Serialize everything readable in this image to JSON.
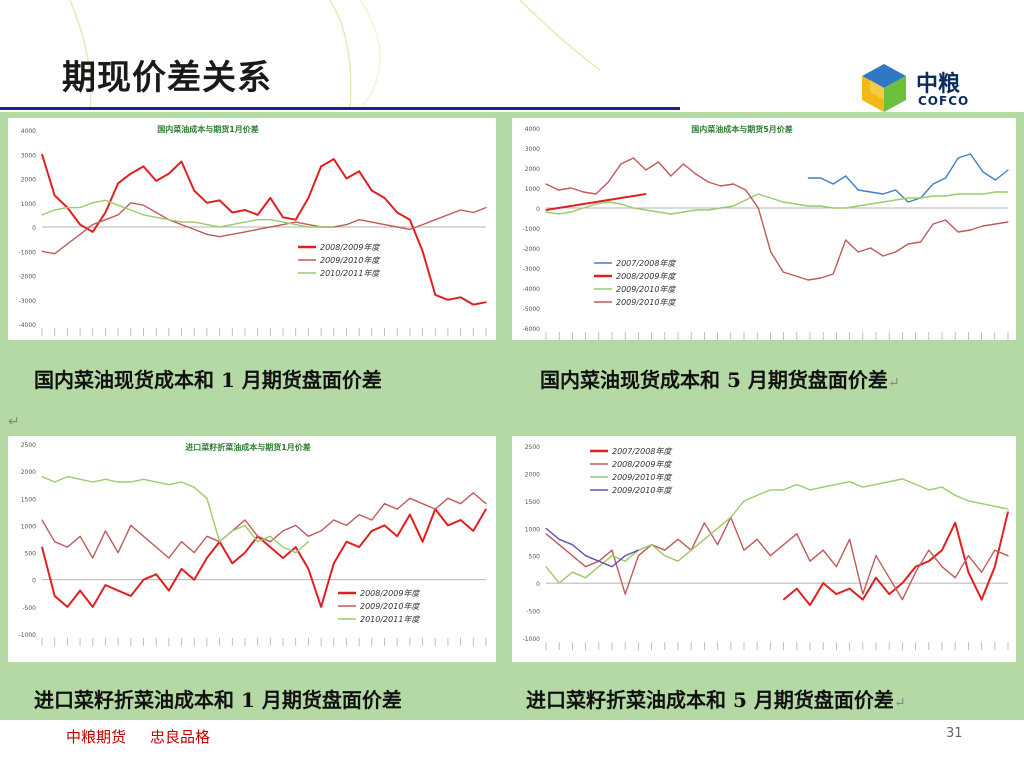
{
  "slide": {
    "title": "期现价差关系",
    "page_number": "31",
    "footer": {
      "company": "中粮期货",
      "motto": "忠良品格"
    },
    "logo": {
      "cn": "中粮",
      "en": "COFCO"
    },
    "return_mark": "↵"
  },
  "captions": [
    "国内菜油现货成本和 1 月期货盘面价差",
    "国内菜油现货成本和 5 月期货盘面价差",
    "进口菜籽折菜油成本和 1 月期货盘面价差",
    "进口菜籽折菜油成本和 5 月期货盘面价差"
  ],
  "colors": {
    "red": "#e02020",
    "rose": "#c05a5a",
    "green": "#9ccb6a",
    "blue": "#3f7fc8",
    "purple": "#6a4fb8"
  },
  "chart_data": [
    {
      "type": "line",
      "title": "国内菜油成本与期货1月价差",
      "ylim": [
        -4000,
        4000
      ],
      "yticks": [
        "4000",
        "3000",
        "2000",
        "1000",
        "0",
        "-1000",
        "-2000",
        "-3000",
        "-4000"
      ],
      "legend_position": "center-right",
      "series": [
        {
          "name": "2008/2009年度",
          "color": "red",
          "values": [
            3000,
            1300,
            800,
            100,
            -200,
            600,
            1800,
            2200,
            2500,
            1900,
            2200,
            2700,
            1500,
            1000,
            1100,
            600,
            700,
            500,
            1200,
            400,
            300,
            1200,
            2500,
            2800,
            2000,
            2300,
            1500,
            1200,
            600,
            300,
            -1000,
            -2800,
            -3000,
            -2900,
            -3200,
            -3100
          ]
        },
        {
          "name": "2009/2010年度",
          "color": "rose",
          "values": [
            -1000,
            -1100,
            -700,
            -300,
            100,
            300,
            500,
            1000,
            900,
            600,
            300,
            100,
            -100,
            -300,
            -400,
            -300,
            -200,
            -100,
            0,
            100,
            200,
            100,
            0,
            0,
            100,
            300,
            200,
            100,
            0,
            -100,
            100,
            300,
            500,
            700,
            600,
            800
          ]
        },
        {
          "name": "2010/2011年度",
          "color": "green",
          "values": [
            500,
            700,
            800,
            800,
            1000,
            1100,
            900,
            700,
            500,
            400,
            300,
            200,
            200,
            100,
            0,
            100,
            200,
            300,
            300,
            200,
            100,
            0,
            0,
            0
          ]
        }
      ]
    },
    {
      "type": "line",
      "title": "国内菜油成本与期货5月价差",
      "ylim": [
        -6000,
        4000
      ],
      "yticks": [
        "4000",
        "3000",
        "2000",
        "1000",
        "0",
        "-1000",
        "-2000",
        "-3000",
        "-4000",
        "-5000",
        "-6000"
      ],
      "legend_position": "center",
      "series": [
        {
          "name": "2007/2008年度",
          "color": "blue",
          "values": [
            null,
            null,
            null,
            null,
            null,
            null,
            null,
            null,
            null,
            null,
            null,
            null,
            null,
            null,
            null,
            null,
            null,
            null,
            null,
            null,
            null,
            1500,
            1500,
            1200,
            1600,
            900,
            800,
            700,
            900,
            300,
            500,
            1200,
            1500,
            2500,
            2700,
            1800,
            1400,
            1900
          ]
        },
        {
          "name": "2008/2009年度",
          "color": "red",
          "values": [
            -100,
            0,
            100,
            200,
            300,
            400,
            500,
            600,
            700
          ]
        },
        {
          "name": "2009/2010年度",
          "color": "green",
          "values": [
            -200,
            -300,
            -200,
            0,
            200,
            300,
            200,
            0,
            -100,
            -200,
            -300,
            -200,
            -100,
            -100,
            0,
            100,
            400,
            700,
            500,
            300,
            200,
            100,
            100,
            0,
            0,
            100,
            200,
            300,
            400,
            500,
            500,
            600,
            600,
            700,
            700,
            700,
            800,
            800
          ]
        },
        {
          "name": "2009/2010年度",
          "color": "rose",
          "values": [
            1200,
            900,
            1000,
            800,
            700,
            1300,
            2200,
            2500,
            1900,
            2300,
            1600,
            2200,
            1700,
            1300,
            1100,
            1200,
            900,
            0,
            -2200,
            -3200,
            -3400,
            -3600,
            -3500,
            -3300,
            -1600,
            -2200,
            -2000,
            -2400,
            -2200,
            -1800,
            -1700,
            -800,
            -600,
            -1200,
            -1100,
            -900,
            -800,
            -700
          ]
        }
      ]
    },
    {
      "type": "line",
      "title": "进口菜籽折菜油成本与期货1月价差",
      "ylim": [
        -1000,
        2500
      ],
      "yticks": [
        "2500",
        "2000",
        "1500",
        "1000",
        "500",
        "0",
        "-500",
        "-1000"
      ],
      "legend_position": "bottom-right",
      "series": [
        {
          "name": "2008/2009年度",
          "color": "red",
          "values": [
            600,
            -300,
            -500,
            -200,
            -500,
            -100,
            -200,
            -300,
            0,
            100,
            -200,
            200,
            0,
            400,
            700,
            300,
            500,
            800,
            600,
            400,
            600,
            200,
            -500,
            300,
            700,
            600,
            900,
            1000,
            800,
            1200,
            700,
            1300,
            1000,
            1100,
            900,
            1300
          ]
        },
        {
          "name": "2009/2010年度",
          "color": "rose",
          "values": [
            1100,
            700,
            600,
            800,
            400,
            900,
            500,
            1000,
            800,
            600,
            400,
            700,
            500,
            800,
            700,
            900,
            1100,
            800,
            700,
            900,
            1000,
            800,
            900,
            1100,
            1000,
            1200,
            1100,
            1400,
            1300,
            1500,
            1400,
            1300,
            1500,
            1400,
            1600,
            1400
          ]
        },
        {
          "name": "2010/2011年度",
          "color": "green",
          "values": [
            1900,
            1800,
            1900,
            1850,
            1800,
            1850,
            1800,
            1800,
            1850,
            1800,
            1750,
            1800,
            1700,
            1500,
            700,
            900,
            1000,
            700,
            800,
            600,
            500,
            700
          ]
        }
      ]
    },
    {
      "type": "line",
      "title": "",
      "ylim": [
        -1000,
        2500
      ],
      "yticks": [
        "2500",
        "2000",
        "1500",
        "1000",
        "500",
        "0",
        "-500",
        "-1000"
      ],
      "legend_position": "top-left",
      "series": [
        {
          "name": "2007/2008年度",
          "color": "red",
          "values": [
            null,
            null,
            null,
            null,
            null,
            null,
            null,
            null,
            null,
            null,
            null,
            null,
            null,
            null,
            null,
            null,
            null,
            null,
            -300,
            -100,
            -400,
            0,
            -200,
            -100,
            -300,
            100,
            -200,
            0,
            300,
            400,
            600,
            1100,
            200,
            -300,
            300,
            1300
          ]
        },
        {
          "name": "2008/2009年度",
          "color": "rose",
          "values": [
            900,
            700,
            500,
            300,
            400,
            600,
            -200,
            500,
            700,
            600,
            800,
            600,
            1100,
            700,
            1200,
            600,
            800,
            500,
            700,
            900,
            400,
            600,
            300,
            800,
            -200,
            500,
            100,
            -300,
            200,
            600,
            300,
            100,
            500,
            200,
            600,
            500
          ]
        },
        {
          "name": "2009/2010年度",
          "color": "green",
          "values": [
            300,
            0,
            200,
            100,
            300,
            500,
            400,
            600,
            700,
            500,
            400,
            600,
            800,
            1000,
            1200,
            1500,
            1600,
            1700,
            1700,
            1800,
            1700,
            1750,
            1800,
            1850,
            1750,
            1800,
            1850,
            1900,
            1800,
            1700,
            1750,
            1600,
            1500,
            1450,
            1400,
            1350
          ]
        },
        {
          "name": "2009/2010年度",
          "color": "purple",
          "values": [
            1000,
            800,
            700,
            500,
            400,
            300,
            500,
            600
          ]
        }
      ]
    }
  ]
}
